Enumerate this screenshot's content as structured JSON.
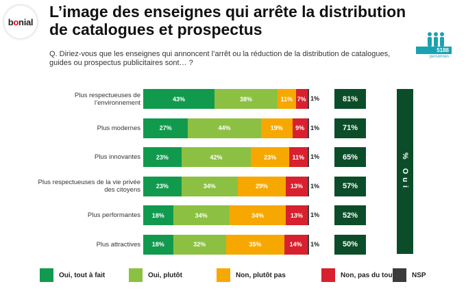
{
  "brand": {
    "logo_text": "bonial"
  },
  "title": "L’image des enseignes qui arrête la distribution de catalogues et prospectus",
  "question": "Q. Diriez-vous que les enseignes qui annoncent l’arrêt ou la réduction de la distribution de catalogues, guides ou prospectus publicitaires sont… ?",
  "panel": {
    "count": "5188",
    "unit": "personnes",
    "icon": "people-icon",
    "color": "#1aa2b2"
  },
  "total_column_label": "% Oui",
  "colors": {
    "tout_a_fait": "#119a4e",
    "plutot": "#8cc043",
    "plutot_pas": "#f7a800",
    "pas_du_tout": "#d9202e",
    "nsp": "#3b3b3b",
    "total": "#0b4d29"
  },
  "chart_data": {
    "type": "bar",
    "orientation": "horizontal",
    "stacked": true,
    "categories": [
      "Plus respectueuses de l’environnement",
      "Plus modernes",
      "Plus innovantes",
      "Plus respectueuses de la vie privée des citoyens",
      "Plus performantes",
      "Plus attractives"
    ],
    "series": [
      {
        "name": "Oui, tout à fait",
        "values": [
          43,
          27,
          23,
          23,
          18,
          18
        ]
      },
      {
        "name": "Oui, plutôt",
        "values": [
          38,
          44,
          42,
          34,
          34,
          32
        ]
      },
      {
        "name": "Non, plutôt pas",
        "values": [
          11,
          19,
          23,
          29,
          34,
          35
        ]
      },
      {
        "name": "Non, pas du tout",
        "values": [
          7,
          9,
          11,
          13,
          13,
          14
        ]
      },
      {
        "name": "NSP",
        "values": [
          1,
          1,
          1,
          1,
          1,
          1
        ]
      }
    ],
    "totals_oui": [
      81,
      71,
      65,
      57,
      52,
      50
    ],
    "unit": "%",
    "legend_position": "bottom"
  }
}
